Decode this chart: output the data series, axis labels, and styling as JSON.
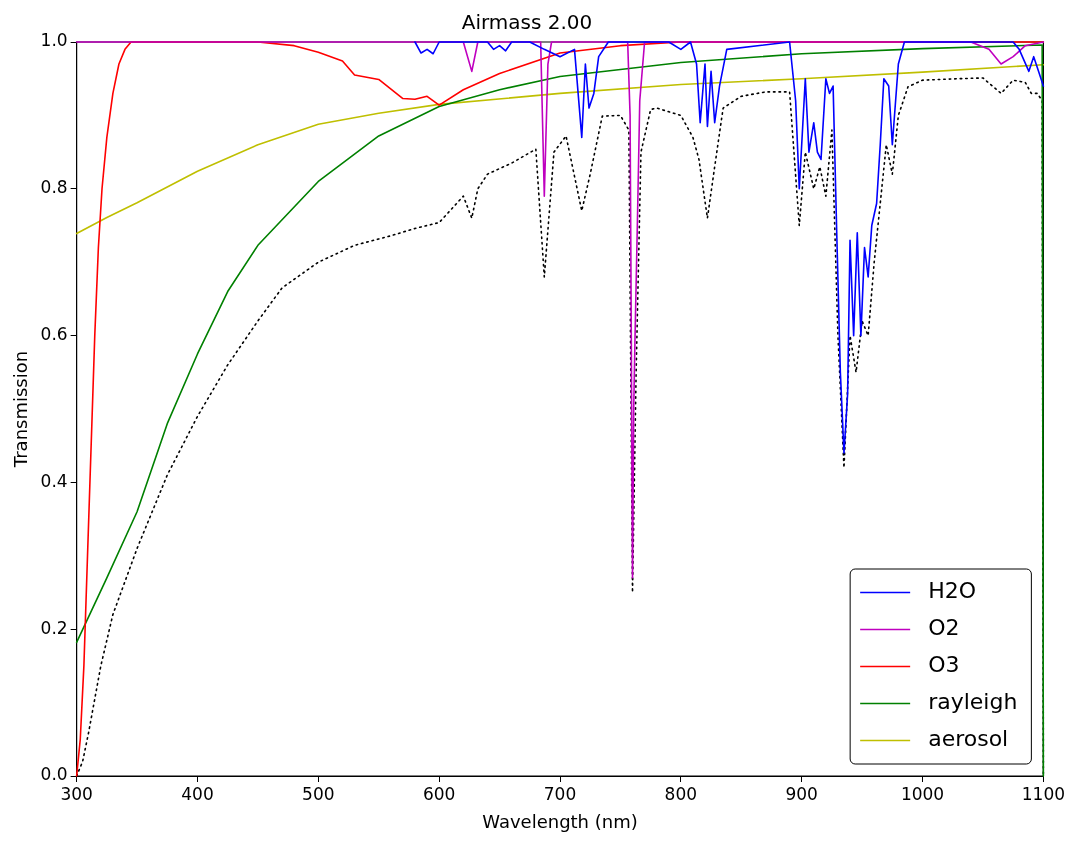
{
  "chart_data": {
    "type": "line",
    "title": "Airmass 2.00",
    "xlabel": "Wavelength (nm)",
    "ylabel": "Transmission",
    "xlim": [
      300,
      1100
    ],
    "ylim": [
      0,
      1
    ],
    "xticks": [
      300,
      400,
      500,
      600,
      700,
      800,
      900,
      1000,
      1100
    ],
    "yticks": [
      {
        "value": 0,
        "label": "0.0"
      },
      {
        "value": 0.2,
        "label": "0.2"
      },
      {
        "value": 0.4,
        "label": "0.4"
      },
      {
        "value": 0.6,
        "label": "0.6"
      },
      {
        "value": 0.8,
        "label": "0.8"
      },
      {
        "value": 1,
        "label": "1.0"
      }
    ],
    "grid": false,
    "legend": "bottom right",
    "marker": "none",
    "series": [
      {
        "name": "H2O",
        "color": "#0000ff",
        "x": [
          580,
          585,
          590,
          595,
          600,
          640,
          645,
          650,
          655,
          660,
          675,
          687,
          700,
          712,
          718,
          721,
          724,
          728,
          732,
          740,
          790,
          800,
          808,
          813,
          816,
          820,
          822,
          825,
          828,
          832,
          838,
          890,
          895,
          898,
          901,
          903,
          906,
          910,
          913,
          916,
          920,
          923,
          926,
          929,
          932,
          935,
          938,
          940,
          943,
          946,
          949,
          952,
          955,
          958,
          962,
          965,
          968,
          972,
          975,
          980,
          985,
          1075,
          1080,
          1088,
          1092,
          1096,
          1100
        ],
        "values": [
          1,
          0.985,
          0.99,
          0.984,
          1,
          1,
          0.99,
          0.995,
          0.988,
          1,
          1,
          0.99,
          0.98,
          0.99,
          0.87,
          0.97,
          0.91,
          0.93,
          0.98,
          1,
          1,
          0.99,
          1,
          0.97,
          0.89,
          0.97,
          0.885,
          0.96,
          0.89,
          0.94,
          0.99,
          1,
          0.92,
          0.8,
          0.89,
          0.95,
          0.85,
          0.89,
          0.85,
          0.84,
          0.95,
          0.93,
          0.94,
          0.74,
          0.55,
          0.44,
          0.52,
          0.73,
          0.6,
          0.74,
          0.6,
          0.72,
          0.68,
          0.75,
          0.78,
          0.86,
          0.95,
          0.94,
          0.86,
          0.97,
          1,
          1,
          0.99,
          0.96,
          0.98,
          0.96,
          0.94
        ]
      },
      {
        "name": "O2",
        "color": "#bf00bf",
        "x": [
          300,
          620,
          627,
          632,
          684,
          687,
          690,
          693,
          756,
          758,
          759,
          760,
          761,
          762,
          764,
          766,
          770,
          1040,
          1055,
          1065,
          1075,
          1085,
          1100
        ],
        "values": [
          1,
          1,
          0.96,
          1,
          1,
          0.79,
          0.97,
          1,
          1,
          0.9,
          0.6,
          0.27,
          0.5,
          0.59,
          0.75,
          0.92,
          1,
          1,
          0.99,
          0.97,
          0.98,
          0.995,
          1
        ]
      },
      {
        "name": "O3",
        "color": "#ff0000",
        "x": [
          300,
          303,
          306,
          309,
          312,
          315,
          318,
          321,
          325,
          330,
          335,
          340,
          345,
          450,
          480,
          500,
          520,
          530,
          550,
          570,
          580,
          590,
          600,
          620,
          650,
          700,
          750,
          800,
          1100
        ],
        "values": [
          0,
          0.05,
          0.15,
          0.3,
          0.45,
          0.6,
          0.72,
          0.8,
          0.87,
          0.93,
          0.97,
          0.99,
          1,
          1,
          0.995,
          0.986,
          0.974,
          0.955,
          0.949,
          0.923,
          0.922,
          0.926,
          0.914,
          0.935,
          0.957,
          0.985,
          0.995,
          1,
          1
        ]
      },
      {
        "name": "rayleigh",
        "color": "#008000",
        "x": [
          300,
          325,
          350,
          375,
          400,
          425,
          450,
          500,
          550,
          600,
          650,
          700,
          800,
          900,
          1000,
          1099,
          1100
        ],
        "values": [
          0.182,
          0.27,
          0.36,
          0.48,
          0.575,
          0.66,
          0.723,
          0.81,
          0.872,
          0.912,
          0.935,
          0.953,
          0.972,
          0.984,
          0.991,
          0.996,
          0
        ]
      },
      {
        "name": "aerosol",
        "color": "#bfbf00",
        "x": [
          300,
          325,
          350,
          400,
          450,
          500,
          550,
          600,
          700,
          800,
          900,
          1000,
          1100
        ],
        "values": [
          0.739,
          0.761,
          0.781,
          0.824,
          0.86,
          0.888,
          0.903,
          0.915,
          0.93,
          0.942,
          0.95,
          0.959,
          0.969
        ]
      },
      {
        "color": "#000000",
        "line_style": "dotted",
        "x": [
          300,
          305,
          310,
          320,
          330,
          350,
          375,
          400,
          425,
          450,
          470,
          500,
          530,
          560,
          580,
          600,
          620,
          627,
          632,
          640,
          660,
          680,
          687,
          695,
          705,
          718,
          725,
          735,
          750,
          757,
          760,
          763,
          767,
          775,
          780,
          800,
          810,
          815,
          822,
          828,
          835,
          850,
          870,
          890,
          898,
          903,
          910,
          915,
          920,
          925,
          930,
          935,
          940,
          945,
          950,
          955,
          960,
          965,
          970,
          975,
          980,
          988,
          1000,
          1030,
          1050,
          1065,
          1075,
          1085,
          1090,
          1095,
          1099,
          1100
        ],
        "values": [
          0,
          0.02,
          0.06,
          0.15,
          0.22,
          0.31,
          0.41,
          0.49,
          0.56,
          0.62,
          0.665,
          0.7,
          0.723,
          0.736,
          0.746,
          0.754,
          0.79,
          0.76,
          0.8,
          0.82,
          0.835,
          0.854,
          0.68,
          0.85,
          0.872,
          0.77,
          0.82,
          0.899,
          0.9,
          0.88,
          0.25,
          0.55,
          0.85,
          0.908,
          0.91,
          0.9,
          0.87,
          0.84,
          0.76,
          0.83,
          0.91,
          0.926,
          0.932,
          0.932,
          0.75,
          0.85,
          0.8,
          0.83,
          0.79,
          0.88,
          0.6,
          0.42,
          0.6,
          0.55,
          0.62,
          0.6,
          0.7,
          0.78,
          0.86,
          0.82,
          0.9,
          0.939,
          0.948,
          0.95,
          0.951,
          0.93,
          0.948,
          0.945,
          0.93,
          0.93,
          0.92,
          0
        ]
      }
    ]
  }
}
